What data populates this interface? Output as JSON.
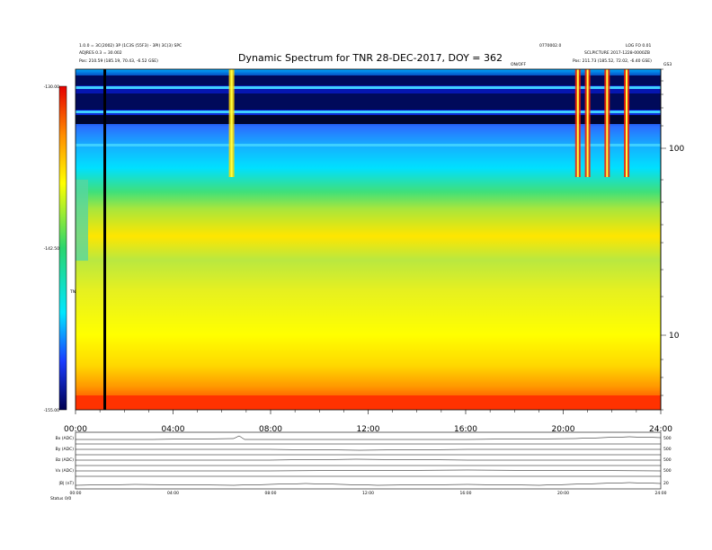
{
  "chart_data": {
    "type": "heatmap",
    "title": "Dynamic Spectrum for TNR 28-DEC-2017, DOY = 362",
    "header_left": [
      "1.0.0 = 3C(2002) 3P (1C3S (55F3) - 3PI) 3C(3) SPC",
      "ADJRES 0.3 = 30.002",
      "Pos: 210.59 (185.19, 70.43, -6.52 GSE)"
    ],
    "header_right": [
      "0770002.0",
      "LOG FO 0.01",
      "SCLPICTURE 2017-1228-0000ZB",
      "Pos: 211.73 (185.52, 72.02, -6.40 GSE)"
    ],
    "header_center_label": "ON/OFF",
    "corner_label": "GS3",
    "colorbar": {
      "label": "TNR",
      "tick_labels": [
        "-130.00",
        "-142.50",
        "-155.00"
      ],
      "range": [
        -155.0,
        -130.0
      ]
    },
    "xlabels": [
      "00:00",
      "04:00",
      "08:00",
      "12:00",
      "16:00",
      "20:00",
      "24:00"
    ],
    "xlim_hours": [
      0,
      24
    ],
    "right_axis_labels": [
      "100",
      "10"
    ],
    "features": {
      "black_vertical_line_hour": 1.2,
      "type_iii_burst_hours": [
        6.4,
        20.6,
        21.0,
        21.8,
        22.6
      ],
      "upper_band_color": "#000a5a",
      "low_band_color": "#ff3200"
    },
    "stack_panels": [
      {
        "label": "Bx (ADC)",
        "right": "500"
      },
      {
        "label": "By (ADC)",
        "right": "500"
      },
      {
        "label": "Bz (ADC)",
        "right": "500"
      },
      {
        "label": "Vx (ADC)",
        "right": "500"
      },
      {
        "label": "|B| (nT)",
        "right": "20"
      }
    ],
    "stack_xlabels": [
      "00:00",
      "04:00",
      "08:00",
      "12:00",
      "16:00",
      "20:00",
      "24:00"
    ],
    "footer_left": "Status",
    "footer_value": "0/0"
  }
}
